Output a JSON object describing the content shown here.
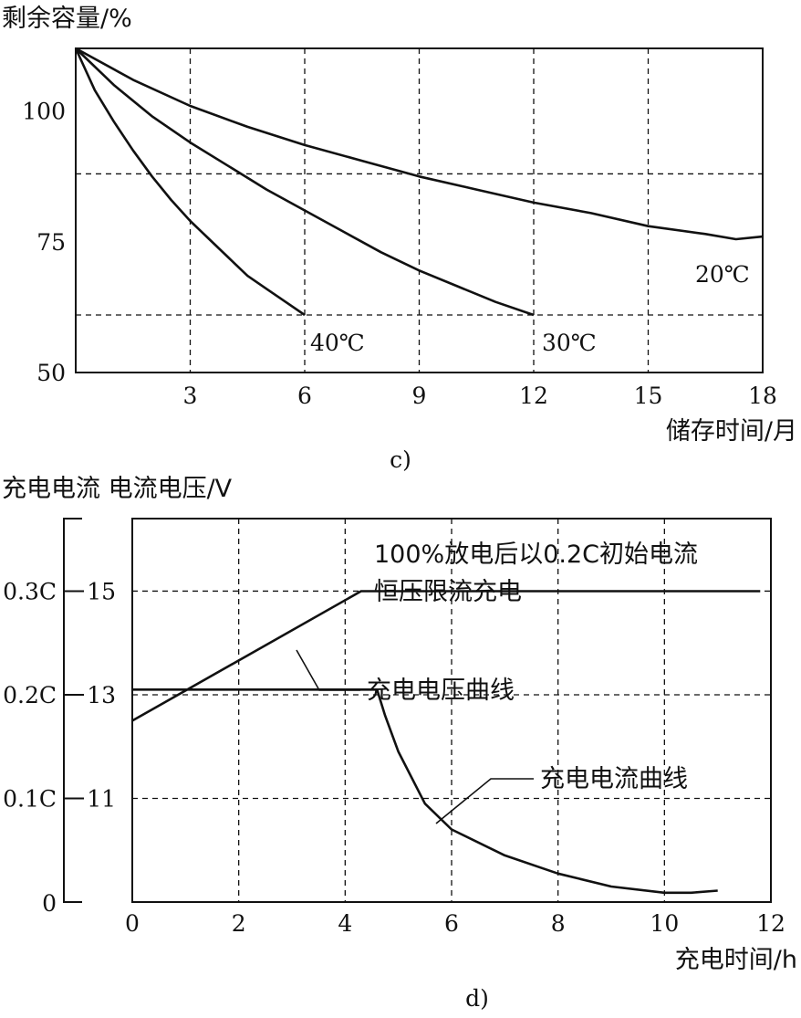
{
  "chart_data": [
    {
      "type": "line",
      "panel_label": "c)",
      "ylabel": "剩余容量/%",
      "xlabel": "储存时间/月",
      "xlim": [
        0,
        18
      ],
      "ylim": [
        50,
        112
      ],
      "xticks": [
        3,
        6,
        9,
        12,
        15,
        18
      ],
      "yticks": [
        50,
        75,
        100
      ],
      "grid": "dashed",
      "hgrid_values": [
        88,
        61
      ],
      "series": [
        {
          "name": "40℃",
          "x": [
            0,
            0.5,
            1,
            1.5,
            2,
            2.5,
            3,
            3.5,
            4,
            4.5,
            5,
            5.5,
            6
          ],
          "y": [
            112,
            104,
            98,
            92.5,
            87.5,
            83,
            79,
            75.5,
            72,
            68.5,
            66,
            63.5,
            61
          ]
        },
        {
          "name": "30℃",
          "x": [
            0,
            1,
            2,
            3,
            4,
            5,
            6,
            7,
            8,
            9,
            10,
            11,
            12
          ],
          "y": [
            112,
            105,
            99,
            94,
            89.5,
            85,
            81,
            77,
            73,
            69.5,
            66.5,
            63.5,
            61
          ]
        },
        {
          "name": "20℃",
          "x": [
            0,
            1.5,
            3,
            4.5,
            6,
            7.5,
            9,
            10.5,
            12,
            13.5,
            15,
            16.5,
            17.3,
            18
          ],
          "y": [
            112,
            106,
            101,
            97,
            93.5,
            90.5,
            87.5,
            85,
            82.5,
            80.5,
            78,
            76.5,
            75.5,
            76
          ]
        }
      ]
    },
    {
      "type": "line",
      "panel_label": "d)",
      "ylabel": "充电电流 电流电压/V",
      "xlabel": "充电时间/h",
      "xlim": [
        0,
        12
      ],
      "ylim": [
        9,
        16.4
      ],
      "xticks": [
        0,
        2,
        4,
        6,
        8,
        10,
        12
      ],
      "yticks_voltage": [
        11,
        13,
        15
      ],
      "yticks_current": [
        "0",
        "0.1C",
        "0.2C",
        "0.3C"
      ],
      "ytick_current_values": [
        9,
        11,
        13,
        15
      ],
      "grid": "dashed",
      "annotation": [
        "100%放电后以0.2C初始电流",
        "恒压限流充电"
      ],
      "series": [
        {
          "name": "充电电压曲线",
          "x": [
            0,
            4.3,
            11.8
          ],
          "y": [
            12.5,
            15,
            15
          ]
        },
        {
          "name": "充电电流曲线",
          "x": [
            0,
            4.6,
            4.75,
            5,
            5.5,
            6,
            7,
            8,
            9,
            10,
            10.5,
            11
          ],
          "y": [
            13.1,
            13.1,
            12.6,
            11.9,
            10.9,
            10.4,
            9.9,
            9.55,
            9.3,
            9.18,
            9.18,
            9.22
          ]
        }
      ]
    }
  ]
}
